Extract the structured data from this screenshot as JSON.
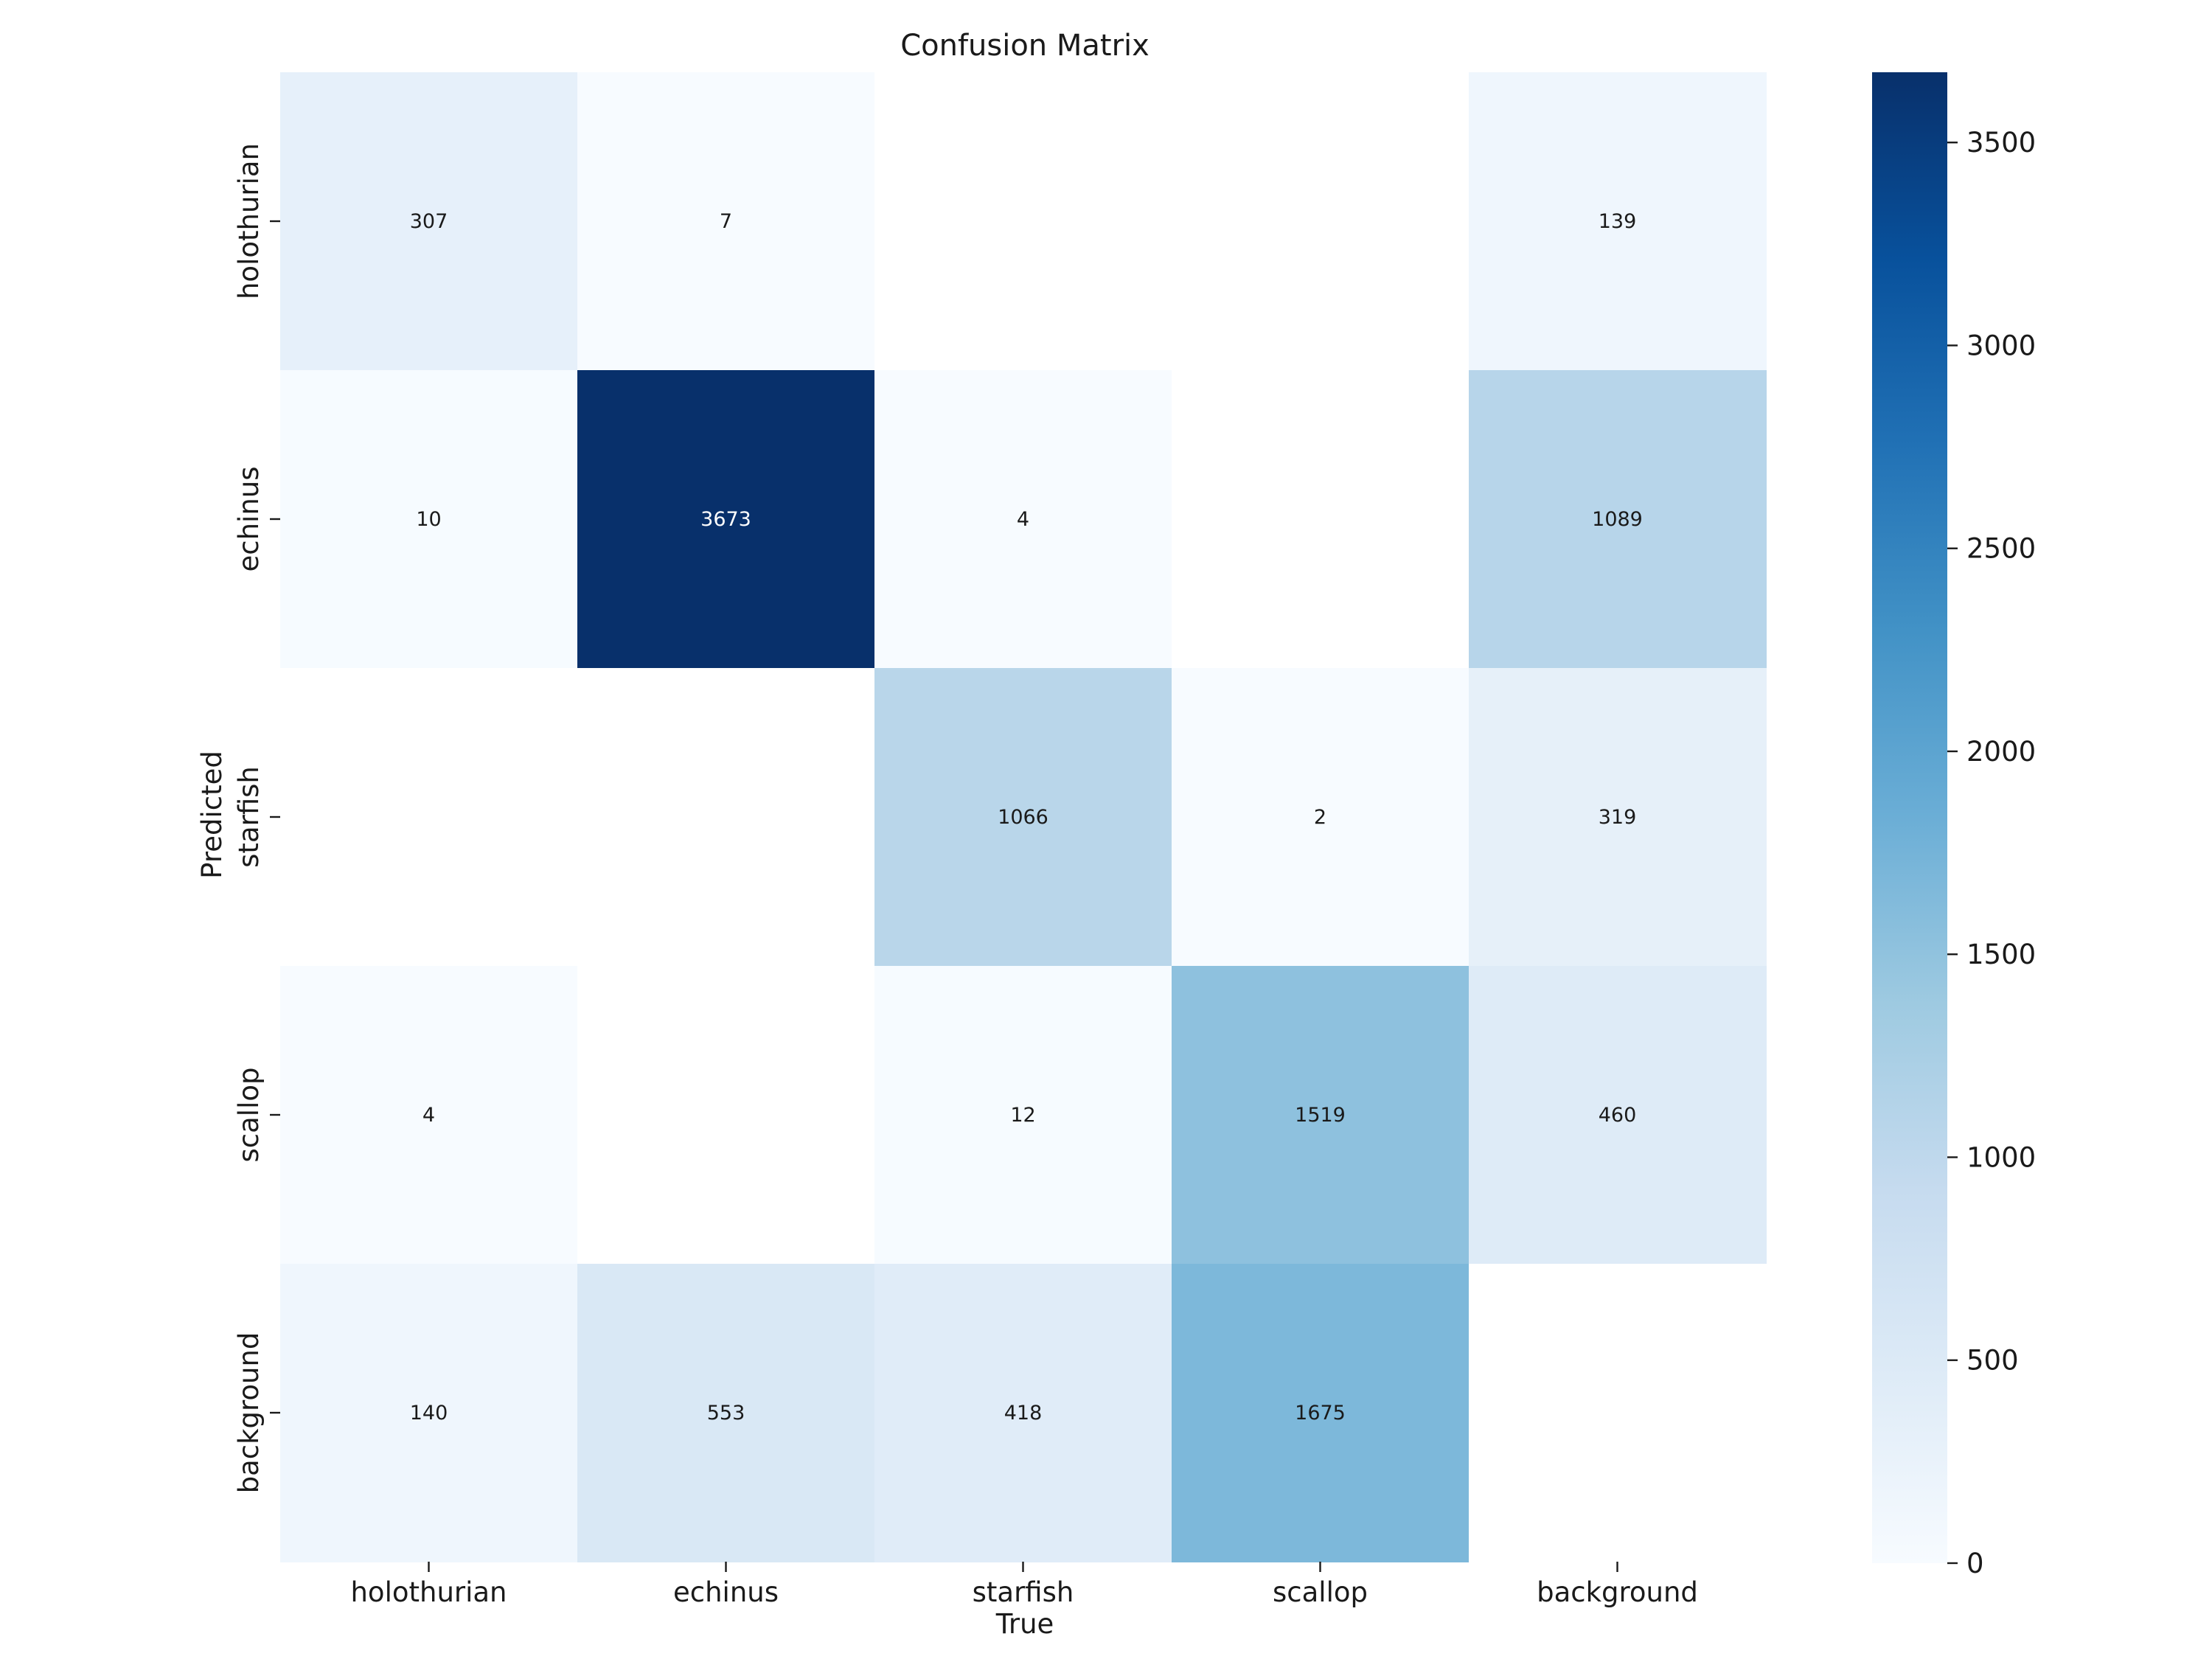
{
  "chart_data": {
    "type": "heatmap",
    "title": "Confusion Matrix",
    "xlabel": "True",
    "ylabel": "Predicted",
    "x_categories": [
      "holothurian",
      "echinus",
      "starfish",
      "scallop",
      "background"
    ],
    "y_categories": [
      "holothurian",
      "echinus",
      "starfish",
      "scallop",
      "background"
    ],
    "values": [
      [
        307,
        7,
        null,
        null,
        139
      ],
      [
        10,
        3673,
        4,
        null,
        1089
      ],
      [
        null,
        null,
        1066,
        2,
        319
      ],
      [
        4,
        null,
        12,
        1519,
        460
      ],
      [
        140,
        553,
        418,
        1675,
        null
      ]
    ],
    "colormap": "Blues",
    "colorbar": {
      "min": 0,
      "max": 3673,
      "ticks": [
        0,
        500,
        1000,
        1500,
        2000,
        2500,
        3000,
        3500
      ]
    },
    "empty_cell_color": "#ffffff"
  }
}
